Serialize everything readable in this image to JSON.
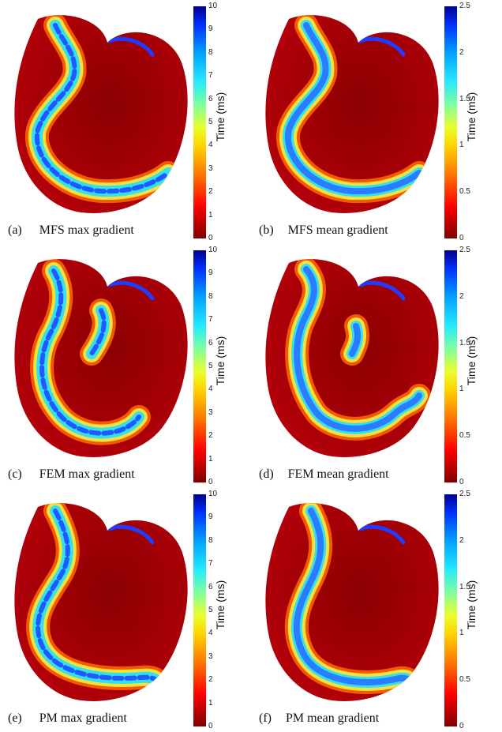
{
  "figure": {
    "panels": [
      {
        "id": "a",
        "tag": "(a)",
        "caption": "MFS max gradient",
        "colorbar": {
          "label": "Time (ms)",
          "ticks": [
            "0",
            "1",
            "2",
            "3",
            "4",
            "5",
            "6",
            "7",
            "8",
            "9",
            "10"
          ],
          "max": 10
        },
        "band_color": "#1f5aff",
        "variant": "mfs"
      },
      {
        "id": "b",
        "tag": "(b)",
        "caption": "MFS mean gradient",
        "colorbar": {
          "label": "Time (ms)",
          "ticks": [
            "0",
            "0.5",
            "1",
            "1.5",
            "2",
            "2.5"
          ],
          "max": 2.5
        },
        "band_color": "#2a7dff",
        "variant": "mfs"
      },
      {
        "id": "c",
        "tag": "(c)",
        "caption": "FEM max gradient",
        "colorbar": {
          "label": "Time (ms)",
          "ticks": [
            "0",
            "1",
            "2",
            "3",
            "4",
            "5",
            "6",
            "7",
            "8",
            "9",
            "10"
          ],
          "max": 10
        },
        "band_color": "#1f5aff",
        "variant": "fem"
      },
      {
        "id": "d",
        "tag": "(d)",
        "caption": "FEM mean gradient",
        "colorbar": {
          "label": "Time (ms)",
          "ticks": [
            "0",
            "0.5",
            "1",
            "1.5",
            "2",
            "2.5"
          ],
          "max": 2.5
        },
        "band_color": "#2a7dff",
        "variant": "fem"
      },
      {
        "id": "e",
        "tag": "(e)",
        "caption": "PM max gradient",
        "colorbar": {
          "label": "Time (ms)",
          "ticks": [
            "0",
            "1",
            "2",
            "3",
            "4",
            "5",
            "6",
            "7",
            "8",
            "9",
            "10"
          ],
          "max": 10
        },
        "band_color": "#1f5aff",
        "variant": "pm"
      },
      {
        "id": "f",
        "tag": "(f)",
        "caption": "PM mean gradient",
        "colorbar": {
          "label": "Time (ms)",
          "ticks": [
            "0",
            "0.5",
            "1",
            "1.5",
            "2",
            "2.5"
          ],
          "max": 2.5
        },
        "band_color": "#2a7dff",
        "variant": "pm"
      }
    ],
    "colors": {
      "background_red": "#b3000a",
      "dark_red": "#8a0000",
      "band_yellow": "#f7e03a",
      "band_cyan": "#34e0f0"
    }
  }
}
